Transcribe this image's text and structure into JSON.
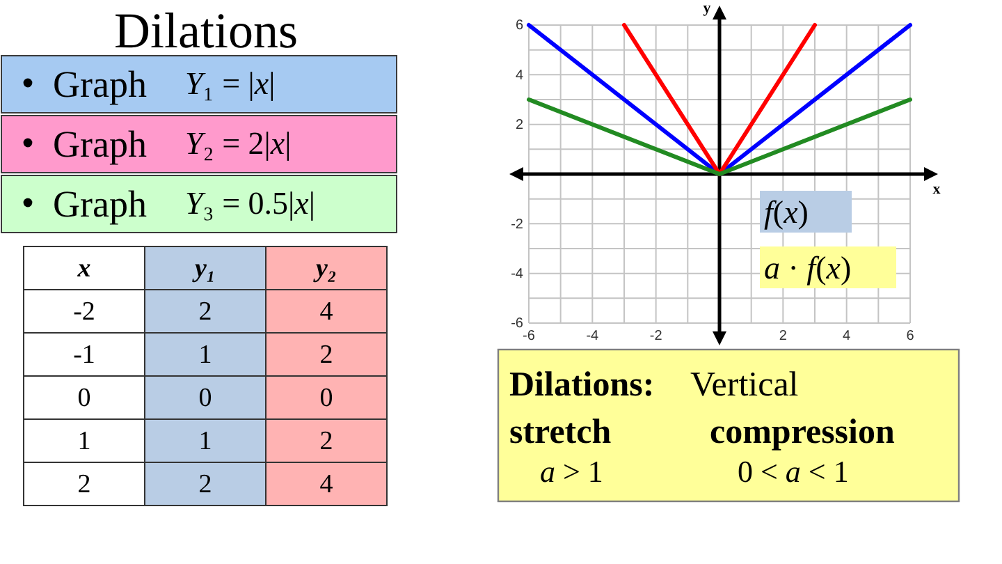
{
  "chart_data": [
    {
      "type": "other",
      "title": "Dilations",
      "annotations": [
        "Graph",
        "Y₁ = |x|",
        "Graph",
        "Y₂ = 2|x|",
        "Graph",
        "Y₃ = 0.5|x|"
      ]
    },
    {
      "type": "heatmap",
      "ylabel": "x",
      "categories": [
        "y₁",
        "y₂"
      ],
      "y_categories": [
        "-2",
        "-1",
        "0",
        "1",
        "2"
      ],
      "cells": [
        [
          2,
          4
        ],
        [
          1,
          2
        ],
        [
          0,
          0
        ],
        [
          1,
          2
        ],
        [
          2,
          4
        ]
      ],
      "data_labels": true
    },
    {
      "type": "line",
      "xlabel": "x",
      "ylabel": "y",
      "xlim": [
        -6,
        6
      ],
      "ylim": [
        -6,
        6
      ],
      "xticks": [
        -6,
        {
          "value": -5,
          "label": null
        },
        -4,
        {
          "value": -3,
          "label": null
        },
        -2,
        {
          "value": -1,
          "label": null
        },
        {
          "value": 1,
          "label": null
        },
        2,
        {
          "value": 3,
          "label": null
        },
        4,
        {
          "value": 5,
          "label": null
        },
        6
      ],
      "yticks": [
        -6,
        {
          "value": -5,
          "label": null
        },
        -4,
        {
          "value": -3,
          "label": null
        },
        -2,
        {
          "value": -1,
          "label": null
        },
        {
          "value": 1,
          "label": null
        },
        2,
        {
          "value": 3,
          "label": null
        },
        4,
        {
          "value": 5,
          "label": null
        },
        6
      ],
      "grid": true,
      "series": [
        {
          "color": "#0000ff",
          "x": [
            -6,
            0,
            6
          ],
          "values": [
            6,
            0,
            6
          ]
        },
        {
          "color": "#ff0000",
          "x": [
            -3,
            0,
            3
          ],
          "values": [
            6,
            0,
            6
          ]
        },
        {
          "color": "#228b22",
          "x": [
            -6,
            0,
            6
          ],
          "values": [
            3,
            0,
            3
          ]
        }
      ],
      "annotations": [
        "f(x)",
        "a · f(x)",
        "Dilations:",
        "Vertical",
        "stretch",
        "compression",
        "a > 1",
        "0 < a < 1"
      ]
    }
  ]
}
